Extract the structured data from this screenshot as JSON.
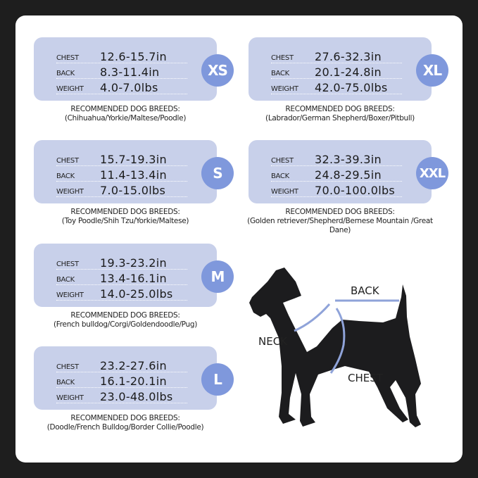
{
  "labels": {
    "chest": "CHEST",
    "back": "BACK",
    "weight": "WEIGHT",
    "recommended": "RECOMMENDED DOG BREEDS:"
  },
  "sizes": [
    {
      "size": "XS",
      "chest": "12.6-15.7in",
      "back": "8.3-11.4in",
      "weight": "4.0-7.0lbs",
      "breeds": "(Chihuahua/Yorkie/Maltese/Poodle)"
    },
    {
      "size": "S",
      "chest": "15.7-19.3in",
      "back": "11.4-13.4in",
      "weight": "7.0-15.0lbs",
      "breeds": "(Toy Poodle/Shih Tzu/Yorkie/Maltese)"
    },
    {
      "size": "M",
      "chest": "19.3-23.2in",
      "back": "13.4-16.1in",
      "weight": "14.0-25.0lbs",
      "breeds": "(French bulldog/Corgi/Goldendoodle/Pug)"
    },
    {
      "size": "L",
      "chest": "23.2-27.6in",
      "back": "16.1-20.1in",
      "weight": "23.0-48.0lbs",
      "breeds": "(Doodle/French Bulldog/Border Collie/Poodle)"
    },
    {
      "size": "XL",
      "chest": "27.6-32.3in",
      "back": "20.1-24.8in",
      "weight": "42.0-75.0lbs",
      "breeds": "(Labrador/German Shepherd/Boxer/Pitbull)"
    },
    {
      "size": "XXL",
      "chest": "32.3-39.3in",
      "back": "24.8-29.5in",
      "weight": "70.0-100.0lbs",
      "breeds": "(Golden retriever/Shepherd/Bernese Mountain /Great Dane)"
    }
  ],
  "diagram": {
    "back": "BACK",
    "neck": "NECK",
    "chest": "CHEST"
  },
  "colors": {
    "card": "#c8d0ea",
    "badge": "#7f98dc",
    "measure_line": "#8fa3d9",
    "frame": "#1e1e1e"
  }
}
